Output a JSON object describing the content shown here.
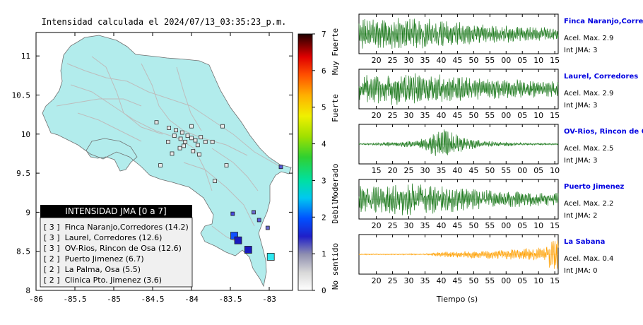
{
  "title": "Intensidad calculada el 2024/07/13_03:35:23_p.m.",
  "colors": {
    "sea": "#ffffff",
    "land": "#b2ecec",
    "trace_green": "#1e7a1e",
    "trace_orange": "#ffa000",
    "station_name": "#0000e0",
    "legend_header_bg": "#000000",
    "legend_bg": "#f0f0f0"
  },
  "map": {
    "xticks": [
      "-86",
      "-85.5",
      "-85",
      "-84.5",
      "-84",
      "-83.5",
      "-83"
    ],
    "yticks": [
      "11",
      "10.5",
      "10",
      "9.5",
      "9",
      "8.5",
      "8"
    ],
    "xlim": [
      -86,
      -82.7
    ],
    "ylim": [
      8,
      11.3
    ],
    "colorbar": {
      "ticks": [
        "7",
        "6",
        "5",
        "4",
        "3",
        "2",
        "1",
        "0"
      ],
      "categories": [
        "Muy Fuerte",
        "Fuerte",
        "Moderado",
        "Debil",
        "No sentido"
      ]
    },
    "legend": {
      "title": "INTENSIDAD JMA [0 a 7]",
      "entries": [
        "[ 3 ]  Finca Naranjo,Corredores (14.2)",
        "[ 3 ]  Laurel, Corredores (12.6)",
        "[ 3 ]  OV-Rios, Rincon de Osa (12.6)",
        "[ 2 ]  Puerto Jimenez (6.7)",
        "[ 2 ]  La Palma, Osa (5.5)",
        "[ 2 ]  Clinica Pto. Jimenez (3.6)"
      ]
    },
    "stations_high": [
      {
        "lon": -83.45,
        "lat": 8.7,
        "intensity": 2.2
      },
      {
        "lon": -83.4,
        "lat": 8.64,
        "intensity": 2.6
      },
      {
        "lon": -83.27,
        "lat": 8.52,
        "intensity": 2.6
      },
      {
        "lon": -82.98,
        "lat": 8.43,
        "intensity": 3.4
      },
      {
        "lon": -83.47,
        "lat": 8.98,
        "intensity": 1.6
      },
      {
        "lon": -83.2,
        "lat": 9.0,
        "intensity": 1.4
      },
      {
        "lon": -83.13,
        "lat": 8.9,
        "intensity": 1.5
      },
      {
        "lon": -83.02,
        "lat": 8.8,
        "intensity": 1.4
      },
      {
        "lon": -82.85,
        "lat": 9.58,
        "intensity": 1.5
      }
    ],
    "stations_low": [
      [
        -84.29,
        10.08
      ],
      [
        -84.2,
        10.05
      ],
      [
        -84.12,
        10.02
      ],
      [
        -84.05,
        9.98
      ],
      [
        -84.0,
        9.95
      ],
      [
        -83.95,
        9.92
      ],
      [
        -83.92,
        9.86
      ],
      [
        -84.08,
        9.9
      ],
      [
        -84.14,
        9.94
      ],
      [
        -84.22,
        9.98
      ],
      [
        -84.3,
        9.9
      ],
      [
        -83.88,
        9.96
      ],
      [
        -83.82,
        9.9
      ],
      [
        -83.73,
        9.9
      ],
      [
        -83.6,
        10.1
      ],
      [
        -84.4,
        9.6
      ],
      [
        -83.7,
        9.4
      ],
      [
        -84.25,
        9.75
      ],
      [
        -84.1,
        9.85
      ],
      [
        -84.0,
        10.1
      ],
      [
        -83.98,
        9.78
      ],
      [
        -84.15,
        9.82
      ],
      [
        -83.9,
        9.74
      ],
      [
        -83.55,
        9.6
      ],
      [
        -84.45,
        10.15
      ]
    ]
  },
  "chart_data": {
    "type": "line",
    "xlabel": "Tiempo (s)",
    "panels": [
      {
        "name": "Finca Naranjo,Corredores",
        "acel_label": "Acel. Max. 2.9",
        "int_label": "Int JMA: 3",
        "color": "green",
        "ticks": [
          "20",
          "25",
          "30",
          "35",
          "40",
          "45",
          "50",
          "55",
          "00",
          "05",
          "10",
          "15"
        ],
        "envelope": [
          [
            0,
            0.9
          ],
          [
            0.3,
            0.9
          ],
          [
            0.6,
            0.55
          ],
          [
            1,
            0.35
          ]
        ],
        "seed": 11
      },
      {
        "name": "Laurel, Corredores",
        "acel_label": "Acel. Max. 2.9",
        "int_label": "Int JMA: 3",
        "color": "green",
        "ticks": [
          "20",
          "25",
          "30",
          "35",
          "40",
          "45",
          "50",
          "55",
          "00",
          "05",
          "10",
          "15"
        ],
        "envelope": [
          [
            0,
            0.8
          ],
          [
            0.3,
            0.95
          ],
          [
            0.6,
            0.6
          ],
          [
            1,
            0.45
          ]
        ],
        "seed": 23
      },
      {
        "name": "OV-Rios, Rincon de Osa",
        "acel_label": "Acel. Max. 2.5",
        "int_label": "Int JMA: 3",
        "color": "green",
        "ticks": [
          "15",
          "20",
          "25",
          "30",
          "35",
          "40",
          "45",
          "50",
          "55",
          "00",
          "05",
          "10"
        ],
        "envelope": [
          [
            0,
            0.04
          ],
          [
            0.1,
            0.08
          ],
          [
            0.3,
            0.22
          ],
          [
            0.37,
            0.6
          ],
          [
            0.43,
            0.98
          ],
          [
            0.5,
            0.45
          ],
          [
            0.62,
            0.2
          ],
          [
            0.8,
            0.08
          ],
          [
            1,
            0.04
          ]
        ],
        "seed": 37
      },
      {
        "name": "Puerto Jimenez",
        "acel_label": "Acel. Max. 2.2",
        "int_label": "Int JMA: 2",
        "color": "green",
        "ticks": [
          "20",
          "25",
          "30",
          "35",
          "40",
          "45",
          "50",
          "55",
          "00",
          "05",
          "10",
          "15"
        ],
        "envelope": [
          [
            0,
            0.75
          ],
          [
            0.3,
            0.95
          ],
          [
            0.6,
            0.55
          ],
          [
            1,
            0.35
          ]
        ],
        "seed": 51
      },
      {
        "name": "La Sabana",
        "acel_label": "Acel. Max. 0.4",
        "int_label": "Int JMA: 0",
        "color": "orange",
        "ticks": [
          "20",
          "25",
          "30",
          "35",
          "40",
          "45",
          "50",
          "55",
          "00",
          "05",
          "10",
          "15"
        ],
        "envelope": [
          [
            0,
            0.03
          ],
          [
            0.35,
            0.04
          ],
          [
            0.42,
            0.15
          ],
          [
            0.55,
            0.22
          ],
          [
            0.8,
            0.3
          ],
          [
            0.93,
            0.4
          ],
          [
            0.97,
            0.95
          ],
          [
            1,
            0.9
          ]
        ],
        "seed": 67
      }
    ]
  }
}
